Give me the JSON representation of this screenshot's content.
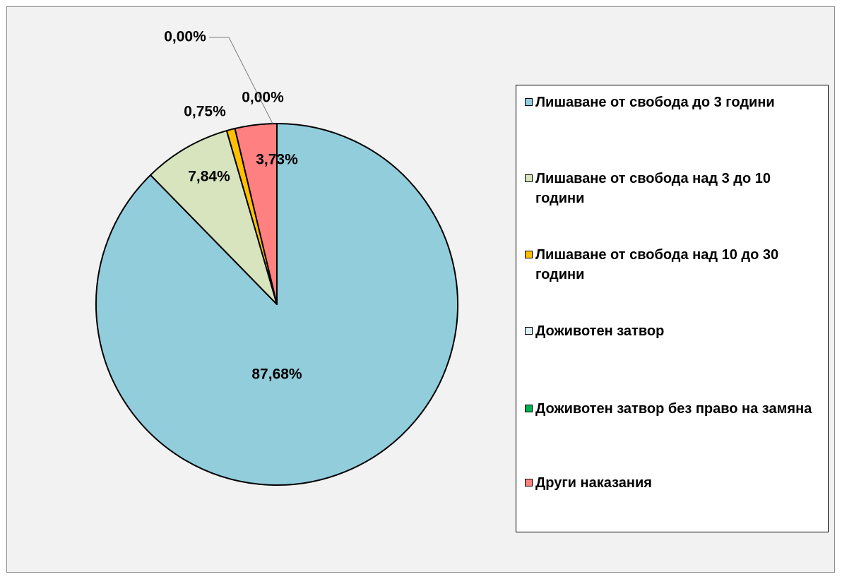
{
  "chart_data": {
    "type": "pie",
    "title": "",
    "legend_position": "right",
    "slices": [
      {
        "label": "Лишаване от свобода до 3 години",
        "value": 87.68,
        "value_label": "87,68%",
        "color": "#92cddc"
      },
      {
        "label": "Лишаване от свобода над 3 до 10 години",
        "value": 7.84,
        "value_label": "7,84%",
        "color": "#d7e4bd"
      },
      {
        "label": "Лишаване от свобода над 10 до 30 години",
        "value": 0.75,
        "value_label": "0,75%",
        "color": "#ffc000"
      },
      {
        "label": "Доживотен затвор",
        "value": 0.0,
        "value_label": "0,00%",
        "color": "#dbeef4"
      },
      {
        "label": "Доживотен затвор без право на замяна",
        "value": 0.0,
        "value_label": "0,00%",
        "color": "#00b050"
      },
      {
        "label": "Други наказания",
        "value": 3.73,
        "value_label": "3,73%",
        "color": "#ff8080"
      }
    ]
  }
}
